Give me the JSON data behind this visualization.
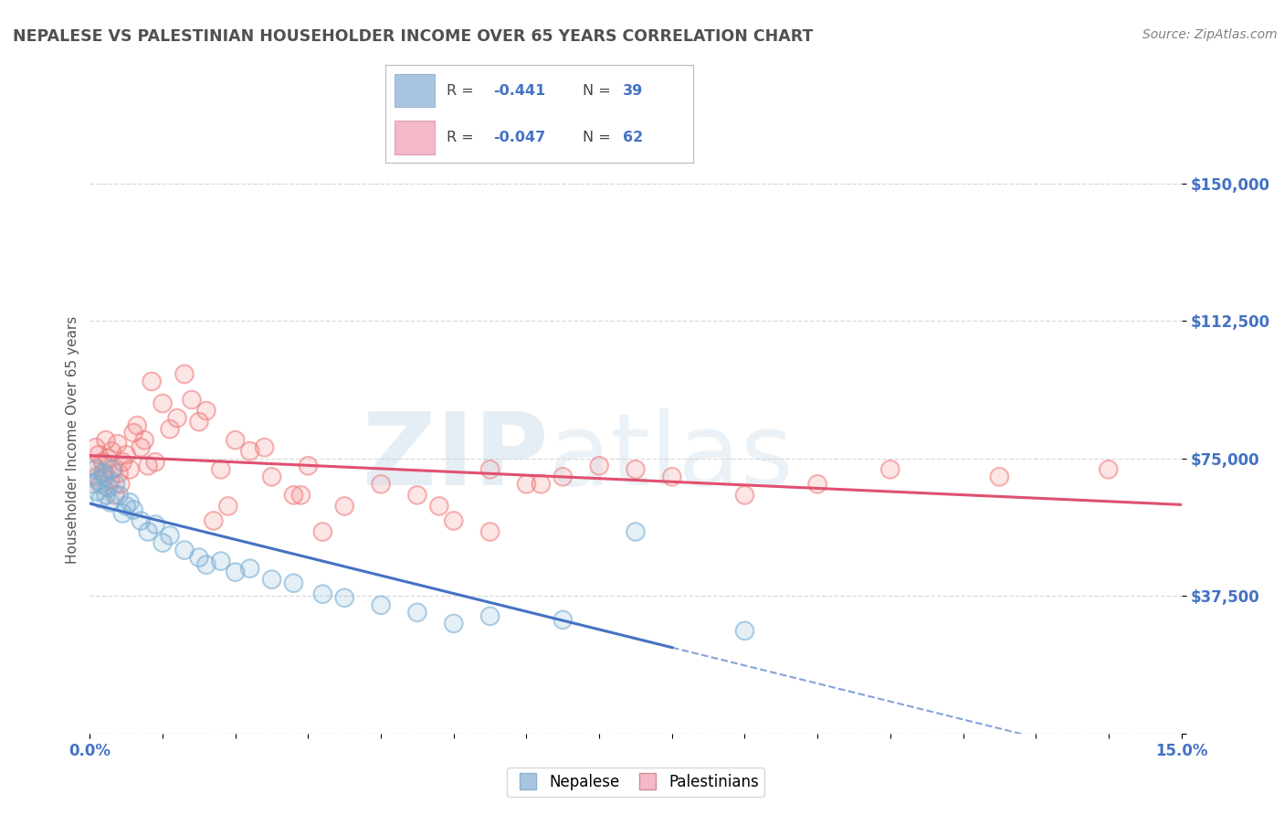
{
  "title": "NEPALESE VS PALESTINIAN HOUSEHOLDER INCOME OVER 65 YEARS CORRELATION CHART",
  "source": "Source: ZipAtlas.com",
  "ylabel": "Householder Income Over 65 years",
  "xlim": [
    0.0,
    15.0
  ],
  "ylim": [
    0,
    160000
  ],
  "yticks": [
    0,
    37500,
    75000,
    112500,
    150000
  ],
  "ytick_labels": [
    "",
    "$37,500",
    "$75,000",
    "$112,500",
    "$150,000"
  ],
  "xtick_labels": [
    "0.0%",
    "15.0%"
  ],
  "nepalese_color": "#7bafd4",
  "palestinian_color": "#f08080",
  "nepalese_color_fill": "#a8c4e0",
  "palestinian_color_fill": "#f4b8c8",
  "legend_blue_color": "#a8c4e0",
  "legend_pink_color": "#f4b8c8",
  "nepalese_R": "-0.441",
  "nepalese_N": "39",
  "palestinian_R": "-0.047",
  "palestinian_N": "62",
  "nepalese_x": [
    0.05,
    0.08,
    0.1,
    0.12,
    0.15,
    0.18,
    0.2,
    0.22,
    0.25,
    0.28,
    0.3,
    0.35,
    0.4,
    0.45,
    0.5,
    0.55,
    0.6,
    0.7,
    0.8,
    0.9,
    1.0,
    1.1,
    1.3,
    1.5,
    1.6,
    1.8,
    2.0,
    2.2,
    2.5,
    2.8,
    3.2,
    3.5,
    4.0,
    4.5,
    5.0,
    5.5,
    6.5,
    7.5,
    9.0
  ],
  "nepalese_y": [
    68000,
    72000,
    66000,
    69000,
    64000,
    71000,
    70000,
    65000,
    67000,
    63000,
    72000,
    68000,
    65000,
    60000,
    62000,
    63000,
    61000,
    58000,
    55000,
    57000,
    52000,
    54000,
    50000,
    48000,
    46000,
    47000,
    44000,
    45000,
    42000,
    41000,
    38000,
    37000,
    35000,
    33000,
    30000,
    32000,
    31000,
    55000,
    28000
  ],
  "palestinian_x": [
    0.05,
    0.08,
    0.1,
    0.12,
    0.15,
    0.18,
    0.2,
    0.22,
    0.25,
    0.28,
    0.3,
    0.32,
    0.35,
    0.38,
    0.4,
    0.42,
    0.45,
    0.5,
    0.55,
    0.6,
    0.65,
    0.7,
    0.75,
    0.8,
    0.85,
    0.9,
    1.0,
    1.1,
    1.2,
    1.3,
    1.4,
    1.5,
    1.6,
    1.8,
    2.0,
    2.2,
    2.5,
    2.8,
    3.0,
    3.5,
    4.0,
    4.5,
    5.0,
    5.5,
    6.0,
    6.5,
    7.0,
    8.0,
    9.0,
    10.0,
    11.0,
    12.5,
    14.0,
    2.4,
    1.9,
    3.2,
    6.2,
    4.8,
    5.5,
    7.5,
    2.9,
    1.7
  ],
  "palestinian_y": [
    73000,
    78000,
    70000,
    76000,
    68000,
    74000,
    71000,
    80000,
    75000,
    69000,
    77000,
    72000,
    65000,
    79000,
    71000,
    68000,
    74000,
    76000,
    72000,
    82000,
    84000,
    78000,
    80000,
    73000,
    96000,
    74000,
    90000,
    83000,
    86000,
    98000,
    91000,
    85000,
    88000,
    72000,
    80000,
    77000,
    70000,
    65000,
    73000,
    62000,
    68000,
    65000,
    58000,
    72000,
    68000,
    70000,
    73000,
    70000,
    65000,
    68000,
    72000,
    70000,
    72000,
    78000,
    62000,
    55000,
    68000,
    62000,
    55000,
    72000,
    65000,
    58000
  ],
  "bg_color": "#ffffff",
  "grid_color": "#d8d8d8",
  "tick_color": "#4472c4",
  "title_color": "#505050",
  "source_color": "#808080"
}
